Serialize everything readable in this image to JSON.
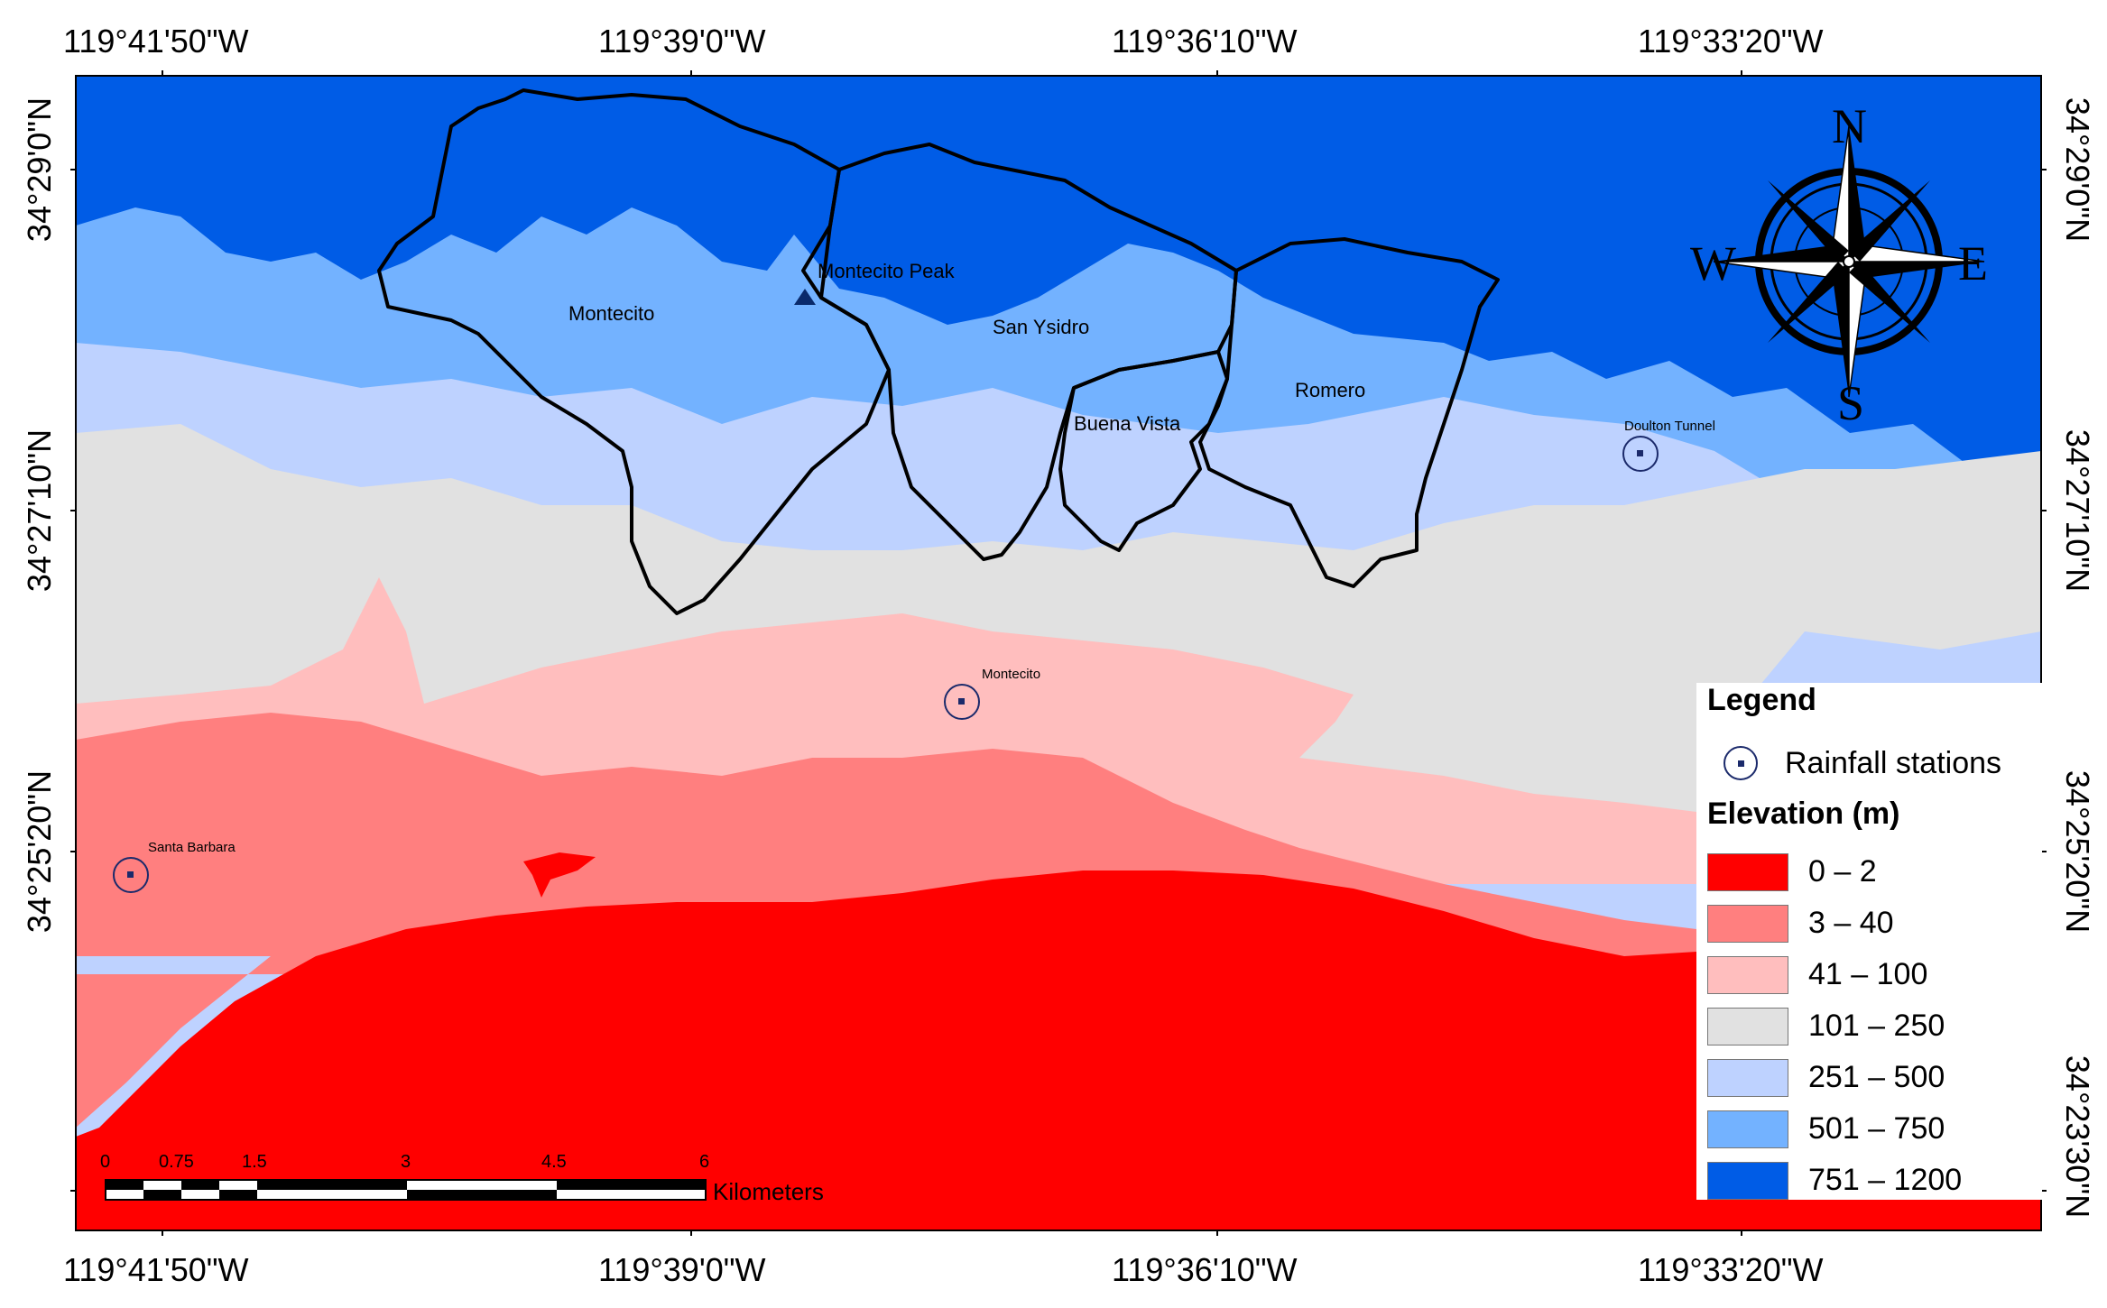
{
  "coordinates": {
    "longitudes": [
      "119°41'50\"W",
      "119°39'0\"W",
      "119°36'10\"W",
      "119°33'20\"W"
    ],
    "latitudes": [
      "34°29'0\"N",
      "34°27'10\"N",
      "34°25'20\"N",
      "34°23'30\"N"
    ]
  },
  "watersheds": [
    "Montecito",
    "San Ysidro",
    "Buena Vista",
    "Romero"
  ],
  "peak": "Montecito Peak",
  "stations": [
    "Santa Barbara",
    "Montecito",
    "Doulton Tunnel"
  ],
  "compass": {
    "n": "N",
    "s": "S",
    "e": "E",
    "w": "W"
  },
  "scale": {
    "ticks": [
      "0",
      "0.75",
      "1.5",
      "3",
      "4.5",
      "6"
    ],
    "unit": "Kilometers"
  },
  "legend": {
    "title": "Legend",
    "stations_label": "Rainfall stations",
    "elevation_title": "Elevation (m)",
    "classes": [
      {
        "label": "0 – 2",
        "color": "#ff0000"
      },
      {
        "label": "3 – 40",
        "color": "#ff7f7f"
      },
      {
        "label": "41 – 100",
        "color": "#ffbebe"
      },
      {
        "label": "101 – 250",
        "color": "#e1e1e1"
      },
      {
        "label": "251 – 500",
        "color": "#bed2ff"
      },
      {
        "label": "501 – 750",
        "color": "#73b2ff"
      },
      {
        "label": "751 – 1200",
        "color": "#005ce6"
      }
    ]
  }
}
